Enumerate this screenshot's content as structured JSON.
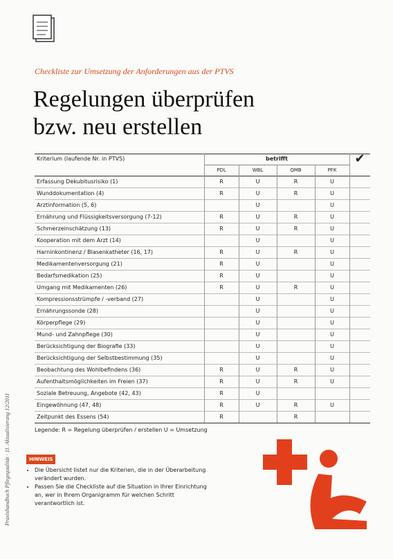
{
  "header": {
    "subtitle": "Checkliste zur Umsetzung der Anforderungen aus der PTVS",
    "title_line1": "Regelungen überprüfen",
    "title_line2": "bzw. neu erstellen"
  },
  "table": {
    "criterion_header": "Kriterium (laufende Nr. in PTVS)",
    "group_header": "betrifft",
    "check_header": "✔",
    "roles": [
      "PDL",
      "WBL",
      "QMB",
      "PFK"
    ],
    "rows": [
      [
        "Erfassung Dekubitusrisiko (1)",
        "R",
        "U",
        "R",
        "U"
      ],
      [
        "Wunddokumentation (4)",
        "R",
        "U",
        "R",
        "U"
      ],
      [
        "Arztinformation (5, 6)",
        null,
        "U",
        null,
        "U"
      ],
      [
        "Ernährung und Flüssigkeitsversorgung (7-12)",
        "R",
        "U",
        "R",
        "U"
      ],
      [
        "Schmerzeinschätzung (13)",
        "R",
        "U",
        "R",
        "U"
      ],
      [
        "Kooperation mit dem Arzt (14)",
        null,
        "U",
        null,
        "U"
      ],
      [
        "Harninkontinenz / Blasenkatheter (16, 17)",
        "R",
        "U",
        "R",
        "U"
      ],
      [
        "Medikamentenversorgung (21)",
        "R",
        "U",
        null,
        "U"
      ],
      [
        "Bedarfsmedikation (25)",
        "R",
        "U",
        null,
        "U"
      ],
      [
        "Umgang mit Medikamenten (26)",
        "R",
        "U",
        "R",
        "U"
      ],
      [
        "Kompressionsstrümpfe / -verband (27)",
        null,
        "U",
        null,
        "U"
      ],
      [
        "Ernährungssonde (28)",
        null,
        "U",
        null,
        "U"
      ],
      [
        "Körperpflege (29)",
        null,
        "U",
        null,
        "U"
      ],
      [
        "Mund- und Zahnpflege (30)",
        null,
        "U",
        null,
        "U"
      ],
      [
        "Berücksichtigung der Biografie (33)",
        null,
        "U",
        null,
        "U"
      ],
      [
        "Berücksichtigung der Selbstbestimmung (35)",
        null,
        "U",
        null,
        "U"
      ],
      [
        "Beobachtung des Wohlbefindens (36)",
        "R",
        "U",
        "R",
        "U"
      ],
      [
        "Aufenthaltsmöglichkeiten im Freien (37)",
        "R",
        "U",
        "R",
        "U"
      ],
      [
        "Soziale Betreuung, Angebote (42, 43)",
        "R",
        "U",
        null,
        null
      ],
      [
        "Eingewöhnung (47, 48)",
        "R",
        "U",
        "R",
        "U"
      ],
      [
        "Zeitpunkt des Essens (54)",
        "R",
        null,
        "R",
        null
      ]
    ]
  },
  "legend": "Legende: R = Regelung überprüfen / erstellen    U = Umsetzung",
  "note": {
    "label": "HINWEIS",
    "items": [
      "Die Übersicht listet nur die Kriterien, die in der Überarbeitung verändert wurden.",
      "Passen Sie die Checkliste auf die Situation in Ihrer Einrichtung an, wer in Ihrem Organigramm für welchen Schritt verantwortlich ist."
    ]
  },
  "side_text": "Praxishandbuch Pflegequalität · 11. Aktualisierung 12/2011"
}
